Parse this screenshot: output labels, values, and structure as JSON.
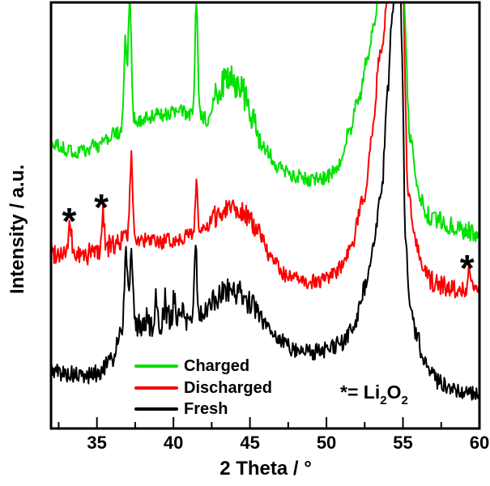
{
  "chart_data": {
    "type": "line",
    "title": "",
    "xlabel": "2 Theta / °",
    "ylabel": "Intensity / a.u.",
    "x_range": [
      32,
      60
    ],
    "x_major_ticks": [
      35,
      40,
      45,
      50,
      55,
      60
    ],
    "x_minor_ticks": [
      32.5,
      37.5,
      42.5,
      47.5,
      52.5,
      57.5
    ],
    "y_axis_note": "arbitrary units, no y ticks; XRD patterns vertically offset for clarity",
    "grid": "off",
    "legend_position": "inside-bottom-center",
    "annotation": {
      "star": "*",
      "eq": "= Li",
      "sub1": "2",
      "el": "O",
      "sub2": "2"
    },
    "marker_phase": "Li2O2",
    "asterisk_markers": [
      {
        "two_theta": 33.35,
        "y_frac": 0.5
      },
      {
        "two_theta": 35.45,
        "y_frac": 0.532
      },
      {
        "two_theta": 59.35,
        "y_frac": 0.39
      }
    ],
    "series": [
      {
        "name": "Charged",
        "color": "#00e100",
        "seed": 20,
        "noise": 0.017,
        "noise_zones": [
          {
            "from": 42.5,
            "to": 45.6,
            "amp": 0.038
          },
          {
            "from": 55.9,
            "to": 60,
            "amp": 0.022
          }
        ],
        "base": [
          [
            32,
            0.667
          ],
          [
            33.5,
            0.648
          ],
          [
            35,
            0.663
          ],
          [
            36.3,
            0.692
          ],
          [
            37.6,
            0.724
          ],
          [
            39,
            0.736
          ],
          [
            40.5,
            0.743
          ],
          [
            41.9,
            0.73
          ],
          [
            42.3,
            0.72
          ],
          [
            43,
            0.8
          ],
          [
            43.7,
            0.825
          ],
          [
            44.4,
            0.8
          ],
          [
            45.2,
            0.72
          ],
          [
            46,
            0.655
          ],
          [
            47,
            0.61
          ],
          [
            47.8,
            0.592
          ],
          [
            49,
            0.585
          ],
          [
            50,
            0.59
          ],
          [
            50.8,
            0.615
          ],
          [
            51.5,
            0.7
          ],
          [
            52.1,
            0.77
          ],
          [
            52.7,
            0.87
          ],
          [
            53.1,
            0.95
          ],
          [
            53.5,
            1.04
          ],
          [
            54.95,
            1.05
          ],
          [
            55.5,
            0.68
          ],
          [
            56,
            0.545
          ],
          [
            56.6,
            0.5
          ],
          [
            57.3,
            0.487
          ],
          [
            58.2,
            0.475
          ],
          [
            59,
            0.465
          ],
          [
            60,
            0.458
          ]
        ],
        "peaks": [
          {
            "c": 36.85,
            "h": 0.205,
            "w": 0.13
          },
          {
            "c": 37.15,
            "h": 0.3,
            "w": 0.14
          },
          {
            "c": 41.5,
            "h": 0.27,
            "w": 0.12
          }
        ]
      },
      {
        "name": "Discharged",
        "color": "#fa0000",
        "seed": 99,
        "noise": 0.018,
        "noise_zones": [
          {
            "from": 32,
            "to": 36.6,
            "amp": 0.025
          },
          {
            "from": 42.4,
            "to": 45.4,
            "amp": 0.026
          },
          {
            "from": 56.5,
            "to": 60,
            "amp": 0.024
          }
        ],
        "base": [
          [
            32,
            0.413
          ],
          [
            33,
            0.413
          ],
          [
            34,
            0.405
          ],
          [
            35,
            0.416
          ],
          [
            36,
            0.43
          ],
          [
            37,
            0.452
          ],
          [
            37.9,
            0.441
          ],
          [
            39,
            0.437
          ],
          [
            40,
            0.441
          ],
          [
            41,
            0.454
          ],
          [
            42,
            0.464
          ],
          [
            42.8,
            0.498
          ],
          [
            43.7,
            0.525
          ],
          [
            44.5,
            0.511
          ],
          [
            45.5,
            0.466
          ],
          [
            46.5,
            0.392
          ],
          [
            47.5,
            0.356
          ],
          [
            48.5,
            0.344
          ],
          [
            49.5,
            0.346
          ],
          [
            50.5,
            0.361
          ],
          [
            51.5,
            0.413
          ],
          [
            52.5,
            0.55
          ],
          [
            53.0,
            0.7
          ],
          [
            53.5,
            0.88
          ],
          [
            54.2,
            1.06
          ],
          [
            54.95,
            1.06
          ],
          [
            55.35,
            0.55
          ],
          [
            55.8,
            0.44
          ],
          [
            56.3,
            0.37
          ],
          [
            56.9,
            0.345
          ],
          [
            57.5,
            0.335
          ],
          [
            58.2,
            0.33
          ],
          [
            59,
            0.327
          ],
          [
            60,
            0.318
          ]
        ],
        "peaks": [
          {
            "c": 33.25,
            "h": 0.061,
            "w": 0.13
          },
          {
            "c": 35.4,
            "h": 0.087,
            "w": 0.12
          },
          {
            "c": 37.25,
            "h": 0.184,
            "w": 0.13
          },
          {
            "c": 41.5,
            "h": 0.12,
            "w": 0.11
          },
          {
            "c": 59.35,
            "h": 0.048,
            "w": 0.16
          }
        ]
      },
      {
        "name": "Fresh",
        "color": "#000000",
        "seed": 5,
        "noise": 0.02,
        "noise_zones": [
          {
            "from": 37.6,
            "to": 41.3,
            "amp": 0.035
          },
          {
            "from": 42.3,
            "to": 45.4,
            "amp": 0.028
          }
        ],
        "base": [
          [
            32,
            0.137
          ],
          [
            33,
            0.129
          ],
          [
            34,
            0.122
          ],
          [
            35,
            0.129
          ],
          [
            36,
            0.16
          ],
          [
            36.5,
            0.225
          ],
          [
            37.0,
            0.26
          ],
          [
            37.7,
            0.245
          ],
          [
            38.5,
            0.25
          ],
          [
            39.5,
            0.255
          ],
          [
            40.5,
            0.26
          ],
          [
            41.8,
            0.268
          ],
          [
            42.7,
            0.3
          ],
          [
            43.5,
            0.327
          ],
          [
            44.3,
            0.319
          ],
          [
            45.2,
            0.289
          ],
          [
            46,
            0.247
          ],
          [
            47,
            0.207
          ],
          [
            48,
            0.186
          ],
          [
            49,
            0.181
          ],
          [
            50,
            0.184
          ],
          [
            51,
            0.2
          ],
          [
            51.8,
            0.24
          ],
          [
            52.5,
            0.33
          ],
          [
            53.1,
            0.44
          ],
          [
            53.6,
            0.55
          ],
          [
            54.0,
            0.8
          ],
          [
            54.3,
            0.97
          ],
          [
            54.55,
            1.1
          ],
          [
            54.8,
            1.1
          ],
          [
            54.95,
            0.85
          ],
          [
            55.15,
            0.45
          ],
          [
            55.45,
            0.29
          ],
          [
            55.9,
            0.22
          ],
          [
            56.35,
            0.16
          ],
          [
            56.8,
            0.125
          ],
          [
            57.4,
            0.108
          ],
          [
            58,
            0.099
          ],
          [
            59,
            0.087
          ],
          [
            60,
            0.082
          ]
        ],
        "peaks": [
          {
            "c": 36.9,
            "h": 0.16,
            "w": 0.13
          },
          {
            "c": 37.25,
            "h": 0.17,
            "w": 0.13
          },
          {
            "c": 41.45,
            "h": 0.173,
            "w": 0.11
          },
          {
            "c": 38.85,
            "h": 0.045,
            "w": 0.07
          },
          {
            "c": 39.45,
            "h": 0.055,
            "w": 0.07
          },
          {
            "c": 40.05,
            "h": 0.07,
            "w": 0.08
          },
          {
            "c": 40.65,
            "h": 0.05,
            "w": 0.07
          }
        ]
      }
    ]
  }
}
